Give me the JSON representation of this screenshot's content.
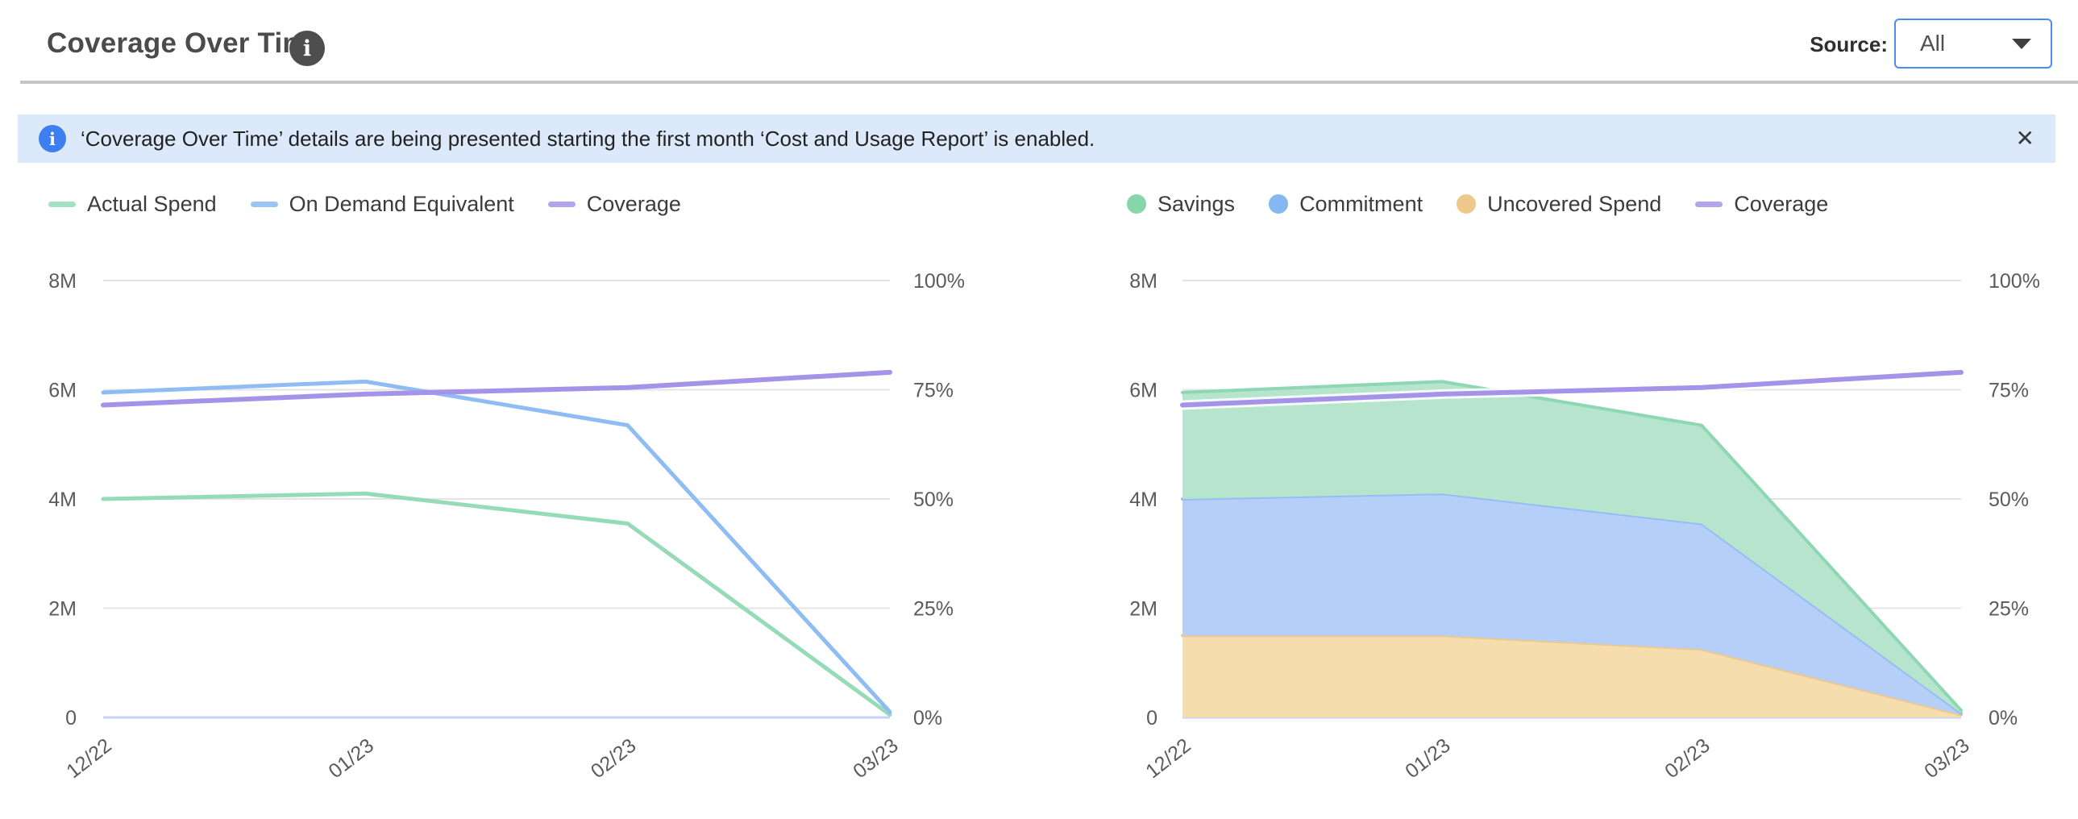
{
  "header": {
    "title": "Coverage Over Time",
    "info_icon": "info-circle",
    "source_label": "Source:",
    "source_value": "All"
  },
  "banner": {
    "icon": "info-circle",
    "text": "‘Coverage Over Time’ details are being presented starting the first month ‘Cost and Usage Report’ is enabled.",
    "close_glyph": "✕"
  },
  "colors": {
    "accent_blue": "#4a8cf7",
    "banner_bg": "#dce9fb",
    "banner_icon": "#3d7ef0",
    "grid_line": "#e4e4e4",
    "zero_line": "#c7d3f2",
    "axis_text": "#5b5b5b",
    "green_line": "#96dbb8",
    "blue_line": "#90bcf4",
    "purple_line": "#a493e8",
    "green_fill": "#b7e4cd",
    "blue_fill": "#b5cff8",
    "orange_fill": "#f5ddae"
  },
  "chart_data": [
    {
      "type": "line",
      "x": [
        "12/22",
        "01/23",
        "02/23",
        "03/23"
      ],
      "series": [
        {
          "name": "Actual Spend",
          "axis": "left",
          "color": "#96dbb8",
          "width": 5,
          "values": [
            4000000,
            4100000,
            3550000,
            50000
          ]
        },
        {
          "name": "On Demand Equivalent",
          "axis": "left",
          "color": "#90bcf4",
          "width": 5,
          "values": [
            5950000,
            6150000,
            5350000,
            100000
          ]
        },
        {
          "name": "Coverage",
          "axis": "right",
          "color": "#a493e8",
          "width": 6,
          "values": [
            71.5,
            74,
            75.5,
            79
          ]
        }
      ],
      "left_axis": {
        "ticks": [
          "8M",
          "6M",
          "4M",
          "2M",
          "0"
        ],
        "min": 0,
        "max": 8000000
      },
      "right_axis": {
        "ticks": [
          "100%",
          "75%",
          "50%",
          "25%",
          "0%"
        ],
        "min": 0,
        "max": 100
      },
      "grid": true,
      "legend_position": "top",
      "legend": [
        {
          "label": "Actual Spend",
          "swatch": "line",
          "color": "#a5e1c3"
        },
        {
          "label": "On Demand Equivalent",
          "swatch": "line",
          "color": "#9cc5f6"
        },
        {
          "label": "Coverage",
          "swatch": "line",
          "color": "#b4a3ed"
        }
      ]
    },
    {
      "type": "area",
      "stacked": true,
      "x": [
        "12/22",
        "01/23",
        "02/23",
        "03/23"
      ],
      "series": [
        {
          "name": "Uncovered Spend",
          "axis": "left",
          "fill": "#f5ddae",
          "edge": "#edc98f",
          "values": [
            1500000,
            1500000,
            1250000,
            50000
          ]
        },
        {
          "name": "Commitment",
          "axis": "left",
          "fill": "#b5cff8",
          "edge": "#96bdf4",
          "values": [
            2500000,
            2600000,
            2300000,
            30000
          ]
        },
        {
          "name": "Savings",
          "axis": "left",
          "fill": "#b7e4cd",
          "edge": "#8ed7b3",
          "values": [
            1950000,
            2050000,
            1800000,
            50000
          ]
        },
        {
          "name": "Coverage",
          "axis": "right",
          "type": "line",
          "color": "#a493e8",
          "width": 6,
          "values": [
            71.5,
            74,
            75.5,
            79
          ]
        }
      ],
      "left_axis": {
        "ticks": [
          "8M",
          "6M",
          "4M",
          "2M",
          "0"
        ],
        "min": 0,
        "max": 8000000
      },
      "right_axis": {
        "ticks": [
          "100%",
          "75%",
          "50%",
          "25%",
          "0%"
        ],
        "min": 0,
        "max": 100
      },
      "grid": true,
      "legend_position": "top",
      "legend": [
        {
          "label": "Savings",
          "swatch": "dot",
          "color": "#85d6ab"
        },
        {
          "label": "Commitment",
          "swatch": "dot",
          "color": "#85b7f2"
        },
        {
          "label": "Uncovered Spend",
          "swatch": "dot",
          "color": "#eec98c"
        },
        {
          "label": "Coverage",
          "swatch": "line",
          "color": "#b4a3ed"
        }
      ]
    }
  ]
}
